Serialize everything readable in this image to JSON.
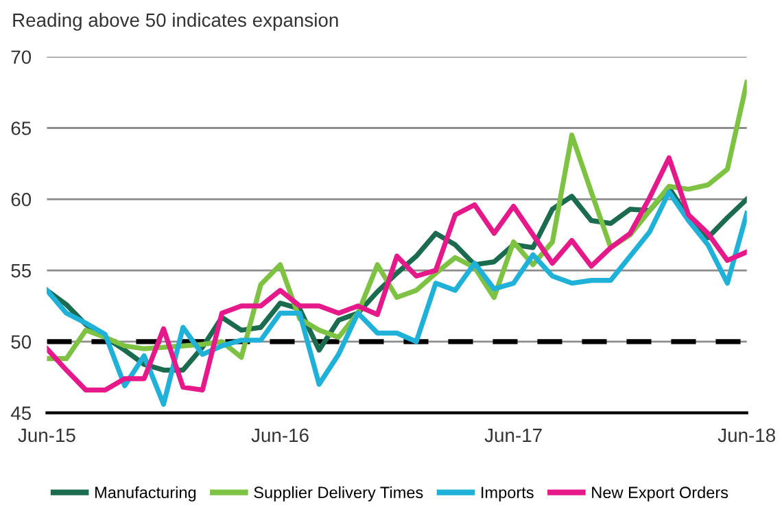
{
  "chart_data": {
    "type": "line",
    "title": "Reading above 50 indicates expansion",
    "categories": [
      "Jun-15",
      null,
      null,
      null,
      null,
      null,
      null,
      null,
      null,
      null,
      null,
      null,
      "Jun-16",
      null,
      null,
      null,
      null,
      null,
      null,
      null,
      null,
      null,
      null,
      null,
      "Jun-17",
      null,
      null,
      null,
      null,
      null,
      null,
      null,
      null,
      null,
      null,
      null,
      "Jun-18"
    ],
    "series": [
      {
        "name": "Manufacturing",
        "color": "#1b6b4f",
        "values": [
          53.6,
          52.6,
          51.2,
          50.3,
          49.4,
          48.4,
          48.0,
          48.0,
          49.6,
          51.7,
          50.8,
          51.0,
          52.7,
          52.3,
          49.4,
          51.5,
          52.0,
          53.5,
          54.8,
          56.0,
          57.6,
          56.8,
          55.4,
          55.6,
          56.8,
          56.6,
          59.3,
          60.2,
          58.5,
          58.3,
          59.3,
          59.2,
          60.8,
          58.7,
          57.3,
          58.7,
          60.0
        ]
      },
      {
        "name": "Supplier Delivery Times",
        "color": "#7dc242",
        "values": [
          48.8,
          48.8,
          50.8,
          50.3,
          49.7,
          49.5,
          49.6,
          49.7,
          49.8,
          50.0,
          48.9,
          54.0,
          55.4,
          51.6,
          50.8,
          50.3,
          52.0,
          55.4,
          53.1,
          53.6,
          54.8,
          55.9,
          55.2,
          53.1,
          57.0,
          55.4,
          57.0,
          64.5,
          60.5,
          56.6,
          57.5,
          59.2,
          60.9,
          60.7,
          61.0,
          62.1,
          68.2
        ]
      },
      {
        "name": "Imports",
        "color": "#1fb1d8",
        "values": [
          53.6,
          52.0,
          51.3,
          50.5,
          46.9,
          49.0,
          45.6,
          51.0,
          49.1,
          49.7,
          50.1,
          50.1,
          52.0,
          52.0,
          47.0,
          49.1,
          52.0,
          50.6,
          50.6,
          50.0,
          54.1,
          53.6,
          55.5,
          53.7,
          54.1,
          56.1,
          54.6,
          54.1,
          54.3,
          54.3,
          56.0,
          57.7,
          60.5,
          58.5,
          56.8,
          54.1,
          59.0
        ]
      },
      {
        "name": "New Export Orders",
        "color": "#e6198a",
        "values": [
          49.5,
          48.0,
          46.6,
          46.6,
          47.4,
          47.4,
          50.9,
          46.8,
          46.6,
          52.0,
          52.5,
          52.5,
          53.6,
          52.5,
          52.5,
          52.0,
          52.5,
          51.9,
          56.0,
          54.6,
          55.0,
          58.9,
          59.6,
          57.6,
          59.5,
          57.5,
          55.5,
          57.1,
          55.3,
          56.6,
          57.6,
          60.1,
          62.9,
          58.9,
          57.6,
          55.7,
          56.3
        ]
      }
    ],
    "ylim": [
      45,
      70
    ],
    "yticks": [
      45,
      50,
      55,
      60,
      65,
      70
    ],
    "grid": "y",
    "legend": "bottom",
    "marker": "none",
    "line_style": "solid",
    "ref_lines": [
      {
        "axis": "y",
        "value": 50,
        "label": null,
        "color": "#000000",
        "line_style": "dashed"
      }
    ]
  }
}
